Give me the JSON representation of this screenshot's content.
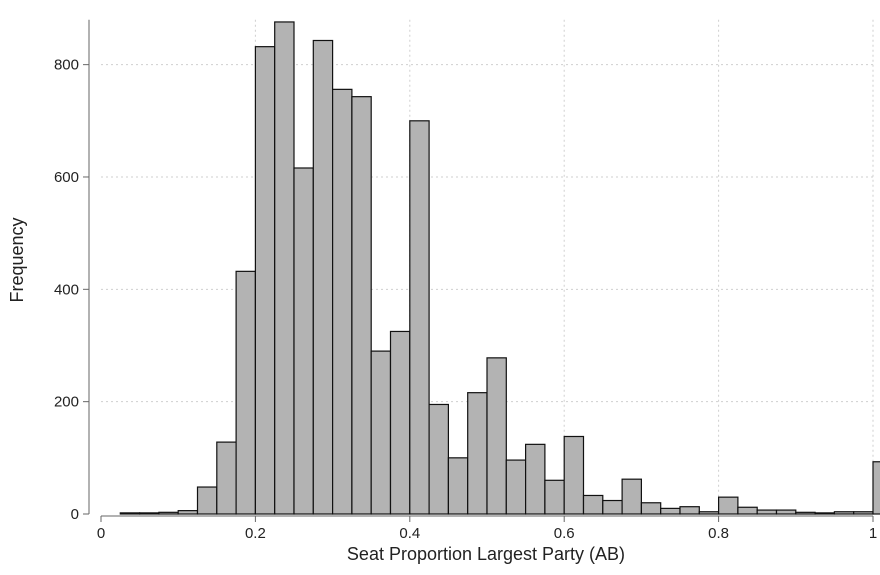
{
  "chart_data": {
    "type": "bar",
    "xlabel": "Seat Proportion Largest Party (AB)",
    "ylabel": "Frequency",
    "xlim": [
      0,
      1
    ],
    "ylim": [
      0,
      880
    ],
    "xticks": [
      "0",
      "0.2",
      "0.4",
      "0.6",
      "0.8",
      "1"
    ],
    "yticks": [
      "0",
      "200",
      "400",
      "600",
      "800"
    ],
    "grid": true,
    "bin_width": 0.025,
    "bins": [
      {
        "x0": 0.025,
        "value": 2
      },
      {
        "x0": 0.05,
        "value": 2
      },
      {
        "x0": 0.075,
        "value": 3
      },
      {
        "x0": 0.1,
        "value": 6
      },
      {
        "x0": 0.125,
        "value": 48
      },
      {
        "x0": 0.15,
        "value": 128
      },
      {
        "x0": 0.175,
        "value": 432
      },
      {
        "x0": 0.2,
        "value": 832
      },
      {
        "x0": 0.225,
        "value": 876
      },
      {
        "x0": 0.25,
        "value": 616
      },
      {
        "x0": 0.275,
        "value": 843
      },
      {
        "x0": 0.3,
        "value": 756
      },
      {
        "x0": 0.325,
        "value": 743
      },
      {
        "x0": 0.35,
        "value": 290
      },
      {
        "x0": 0.375,
        "value": 325
      },
      {
        "x0": 0.4,
        "value": 700
      },
      {
        "x0": 0.425,
        "value": 195
      },
      {
        "x0": 0.45,
        "value": 100
      },
      {
        "x0": 0.475,
        "value": 216
      },
      {
        "x0": 0.5,
        "value": 278
      },
      {
        "x0": 0.525,
        "value": 96
      },
      {
        "x0": 0.55,
        "value": 124
      },
      {
        "x0": 0.575,
        "value": 60
      },
      {
        "x0": 0.6,
        "value": 138
      },
      {
        "x0": 0.625,
        "value": 33
      },
      {
        "x0": 0.65,
        "value": 24
      },
      {
        "x0": 0.675,
        "value": 62
      },
      {
        "x0": 0.7,
        "value": 20
      },
      {
        "x0": 0.725,
        "value": 10
      },
      {
        "x0": 0.75,
        "value": 13
      },
      {
        "x0": 0.775,
        "value": 4
      },
      {
        "x0": 0.8,
        "value": 30
      },
      {
        "x0": 0.825,
        "value": 12
      },
      {
        "x0": 0.85,
        "value": 7
      },
      {
        "x0": 0.875,
        "value": 7
      },
      {
        "x0": 0.9,
        "value": 3
      },
      {
        "x0": 0.925,
        "value": 2
      },
      {
        "x0": 0.95,
        "value": 4
      },
      {
        "x0": 0.975,
        "value": 4
      },
      {
        "x0": 1.0,
        "value": 93
      }
    ],
    "colors": {
      "bar_fill": "#b3b3b3",
      "bar_stroke": "#111111",
      "grid": "#cfcfcf"
    }
  }
}
